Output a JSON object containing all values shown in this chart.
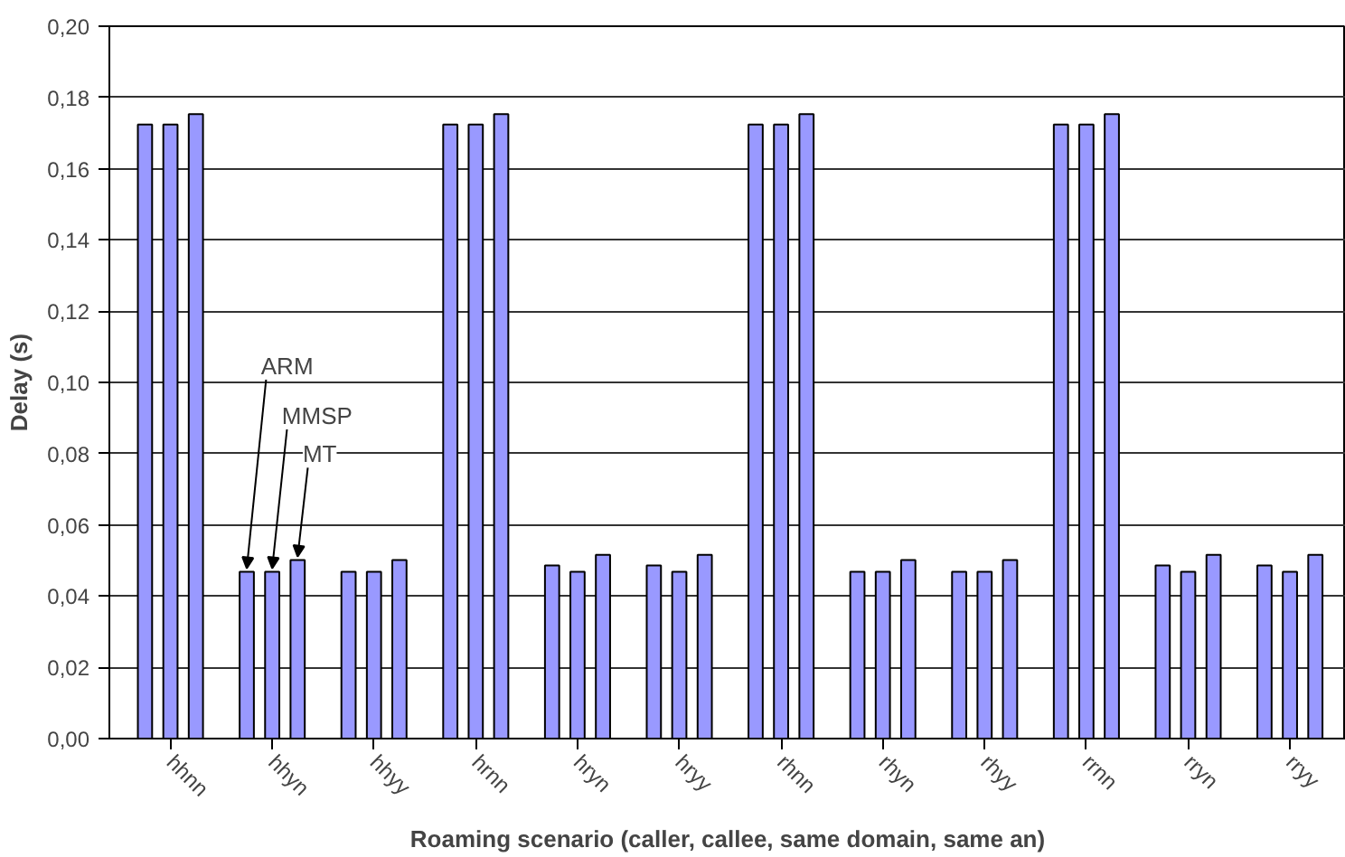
{
  "chart_data": {
    "type": "bar",
    "xlabel": "Roaming scenario (caller, callee, same domain, same an)",
    "ylabel": "Delay (s)",
    "categories": [
      "hhnn",
      "hhyn",
      "hhyy",
      "hrnn",
      "hryn",
      "hryy",
      "rhnn",
      "rhyn",
      "rhyy",
      "rrnn",
      "rryn",
      "rryy"
    ],
    "series": [
      {
        "name": "ARM",
        "color": "#9999ff",
        "values": [
          0.1724,
          0.0468,
          0.0468,
          0.1724,
          0.0486,
          0.0486,
          0.1724,
          0.0468,
          0.0468,
          0.1724,
          0.0486,
          0.0486
        ]
      },
      {
        "name": "MMSP",
        "color": "#9999ff",
        "values": [
          0.1724,
          0.0468,
          0.0468,
          0.1724,
          0.0468,
          0.0468,
          0.1724,
          0.0468,
          0.0468,
          0.1724,
          0.0468,
          0.0468
        ]
      },
      {
        "name": "MT",
        "color": "#9999ff",
        "values": [
          0.1753,
          0.0501,
          0.0501,
          0.1753,
          0.0516,
          0.0516,
          0.1753,
          0.0501,
          0.0501,
          0.1753,
          0.0516,
          0.0516
        ]
      }
    ],
    "ylim": [
      0,
      0.2
    ],
    "yticks": [
      {
        "value": 0,
        "label": "0,00"
      },
      {
        "value": 0.02,
        "label": "0,02"
      },
      {
        "value": 0.04,
        "label": "0,04"
      },
      {
        "value": 0.06,
        "label": "0,06"
      },
      {
        "value": 0.08,
        "label": "0,08"
      },
      {
        "value": 0.1,
        "label": "0,10"
      },
      {
        "value": 0.12,
        "label": "0,12"
      },
      {
        "value": 0.14,
        "label": "0,14"
      },
      {
        "value": 0.16,
        "label": "0,16"
      },
      {
        "value": 0.18,
        "label": "0,18"
      },
      {
        "value": 0.2,
        "label": "0,20"
      }
    ],
    "grid": "y"
  }
}
